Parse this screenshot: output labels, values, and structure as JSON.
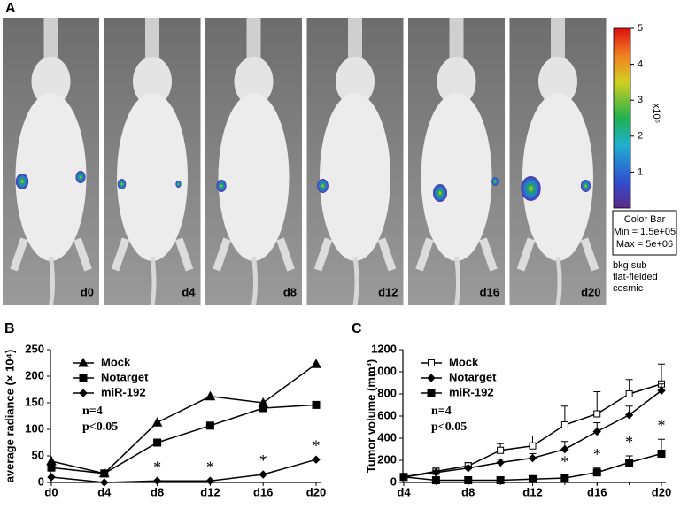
{
  "panel_a": {
    "label": "A",
    "days": [
      "d0",
      "d4",
      "d8",
      "d12",
      "d16",
      "d20"
    ],
    "colorbar": {
      "ticks": [
        1,
        2,
        3,
        4,
        5
      ],
      "lim": [
        0,
        5
      ],
      "unit_label": "x10⁶",
      "box_lines": [
        "Color Bar",
        "Min = 1.5e+05",
        "Max = 5e+06"
      ],
      "notes": [
        "bkg sub",
        "flat-fielded",
        "cosmic"
      ]
    }
  },
  "chart_data": [
    {
      "type": "line",
      "panel_label": "B",
      "y_label": "average radiance (× 10⁴)",
      "categories": [
        "d0",
        "d4",
        "d8",
        "d12",
        "d16",
        "d20"
      ],
      "series": [
        {
          "name": "Mock",
          "color": "#000000",
          "marker": "triangle",
          "values": [
            40,
            17,
            113,
            162,
            150,
            223
          ]
        },
        {
          "name": "Notarget",
          "color": "#000000",
          "marker": "square",
          "values": [
            28,
            17,
            75,
            107,
            140,
            146
          ]
        },
        {
          "name": "miR-192",
          "color": "#000000",
          "marker": "diamond",
          "values": [
            10,
            0,
            3,
            3,
            15,
            43
          ]
        }
      ],
      "significance_labels": [
        null,
        null,
        "*",
        "*",
        "*",
        "*"
      ],
      "ylim": [
        0,
        250
      ],
      "yticks": [
        0,
        50,
        100,
        150,
        200,
        250
      ],
      "annotations": [
        "n=4",
        "p<0.05"
      ],
      "legend": "upper left"
    },
    {
      "type": "line",
      "panel_label": "C",
      "y_label": "Tumor volume (mm³)",
      "x": [
        4,
        6,
        8,
        10,
        12,
        14,
        16,
        18,
        20
      ],
      "xlim": [
        4,
        20
      ],
      "xticks": [
        {
          "value": 4,
          "label": "d4"
        },
        {
          "value": 8,
          "label": "d8"
        },
        {
          "value": 12,
          "label": "d12"
        },
        {
          "value": 16,
          "label": "d16"
        },
        {
          "value": 20,
          "label": "d20"
        }
      ],
      "series": [
        {
          "name": "Mock",
          "color": "#000000",
          "marker": "open-square",
          "values": [
            50,
            100,
            150,
            290,
            330,
            520,
            620,
            800,
            890
          ],
          "errors": [
            10,
            30,
            30,
            60,
            90,
            170,
            200,
            130,
            180
          ]
        },
        {
          "name": "Notarget",
          "color": "#000000",
          "marker": "diamond",
          "values": [
            50,
            90,
            130,
            180,
            220,
            300,
            460,
            610,
            830
          ],
          "errors": [
            10,
            20,
            20,
            30,
            40,
            70,
            80,
            80,
            60
          ]
        },
        {
          "name": "miR-192",
          "color": "#000000",
          "marker": "square",
          "values": [
            50,
            20,
            20,
            20,
            30,
            40,
            90,
            180,
            260
          ],
          "errors": [
            5,
            5,
            5,
            10,
            10,
            20,
            40,
            60,
            130
          ]
        }
      ],
      "significance_labels": [
        null,
        null,
        null,
        null,
        null,
        "*",
        "*",
        "*",
        "*"
      ],
      "ylim": [
        0,
        1200
      ],
      "yticks": [
        0,
        200,
        400,
        600,
        800,
        1000,
        1200
      ],
      "annotations": [
        "n=4",
        "p<0.05"
      ],
      "legend": "upper left"
    }
  ]
}
